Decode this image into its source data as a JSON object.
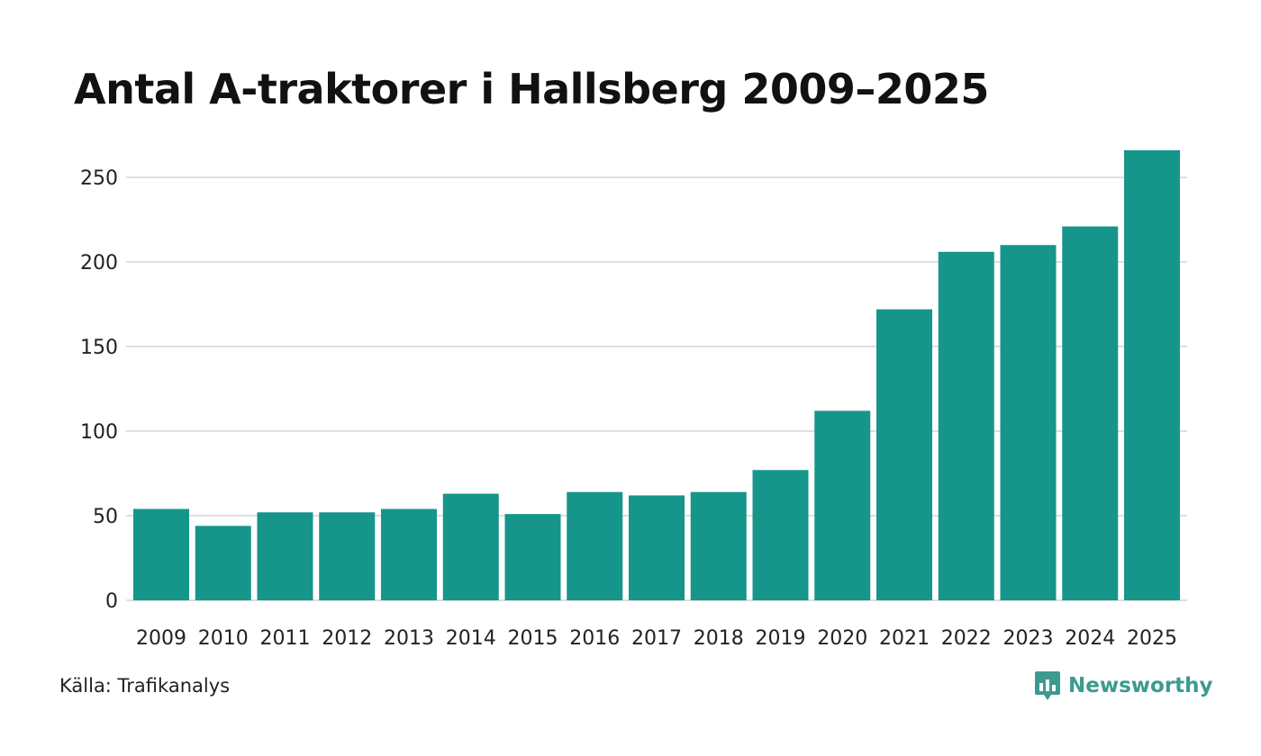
{
  "title": "Antal A-traktorer i Hallsberg 2009–2025",
  "source": "Källa: Trafikanalys",
  "brand": {
    "name": "Newsworthy",
    "icon": "newsworthy-logo-icon"
  },
  "colors": {
    "bar": "#16968a",
    "grid": "#dedede",
    "brand": "#3c9a8f"
  },
  "chart_data": {
    "type": "bar",
    "title": "Antal A-traktorer i Hallsberg 2009–2025",
    "xlabel": "",
    "ylabel": "",
    "categories": [
      "2009",
      "2010",
      "2011",
      "2012",
      "2013",
      "2014",
      "2015",
      "2016",
      "2017",
      "2018",
      "2019",
      "2020",
      "2021",
      "2022",
      "2023",
      "2024",
      "2025"
    ],
    "values": [
      54,
      44,
      52,
      52,
      54,
      63,
      51,
      64,
      62,
      64,
      77,
      112,
      172,
      206,
      210,
      221,
      266
    ],
    "ylim": [
      0,
      266
    ],
    "yticks": [
      0,
      50,
      100,
      150,
      200,
      250
    ],
    "grid": true,
    "legend": "none"
  }
}
